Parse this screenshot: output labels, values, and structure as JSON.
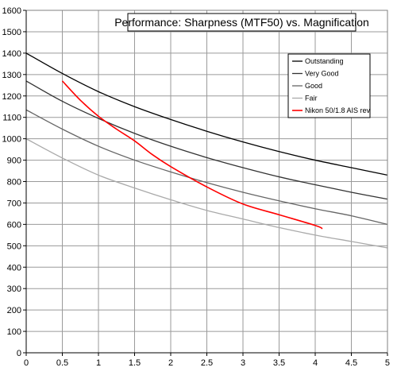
{
  "chart_data": {
    "type": "line",
    "title": "Performance: Sharpness (MTF50) vs. Magnification",
    "xlabel": "",
    "ylabel": "",
    "xlim": [
      0,
      5
    ],
    "ylim": [
      0,
      1600
    ],
    "xticks": [
      0,
      0.5,
      1,
      1.5,
      2,
      2.5,
      3,
      3.5,
      4,
      4.5,
      5
    ],
    "xtick_labels": [
      "0",
      "0.5",
      "1",
      "1.5",
      "2",
      "2.5",
      "3",
      "3.5",
      "4",
      "4.5",
      "5"
    ],
    "yticks": [
      0,
      100,
      200,
      300,
      400,
      500,
      600,
      700,
      800,
      900,
      1000,
      1100,
      1200,
      1300,
      1400,
      1500,
      1600
    ],
    "ytick_labels": [
      "0",
      "100",
      "200",
      "300",
      "400",
      "500",
      "600",
      "700",
      "800",
      "900",
      "1000",
      "1100",
      "1200",
      "1300",
      "1400",
      "1500",
      "1600"
    ],
    "grid": true,
    "legend_position": "top-right",
    "series": [
      {
        "name": "Outstanding",
        "color": "#000000",
        "x": [
          0,
          0.5,
          1,
          1.5,
          2,
          2.5,
          3,
          3.5,
          4,
          4.5,
          5
        ],
        "values": [
          1400,
          1305,
          1220,
          1150,
          1090,
          1035,
          985,
          940,
          900,
          865,
          830
        ]
      },
      {
        "name": "Very Good",
        "color": "#333333",
        "x": [
          0,
          0.5,
          1,
          1.5,
          2,
          2.5,
          3,
          3.5,
          4,
          4.5,
          5
        ],
        "values": [
          1270,
          1175,
          1095,
          1025,
          965,
          912,
          865,
          822,
          785,
          750,
          718
        ]
      },
      {
        "name": "Good",
        "color": "#666666",
        "x": [
          0,
          0.5,
          1,
          1.5,
          2,
          2.5,
          3,
          3.5,
          4,
          4.5,
          5
        ],
        "values": [
          1135,
          1045,
          965,
          900,
          845,
          795,
          750,
          710,
          673,
          640,
          600
        ]
      },
      {
        "name": "Fair",
        "color": "#aaaaaa",
        "x": [
          0,
          0.5,
          1,
          1.5,
          2,
          2.5,
          3,
          3.5,
          4,
          4.5,
          5
        ],
        "values": [
          1000,
          910,
          830,
          770,
          715,
          665,
          625,
          585,
          550,
          520,
          490
        ]
      },
      {
        "name": "Nikon 50/1.8 AIS rev",
        "color": "#ff0000",
        "x": [
          0.5,
          0.75,
          1,
          1.25,
          1.5,
          1.75,
          2,
          2.5,
          3,
          3.5,
          4,
          4.1
        ],
        "values": [
          1270,
          1180,
          1105,
          1045,
          990,
          925,
          870,
          775,
          695,
          645,
          595,
          580
        ]
      }
    ]
  }
}
